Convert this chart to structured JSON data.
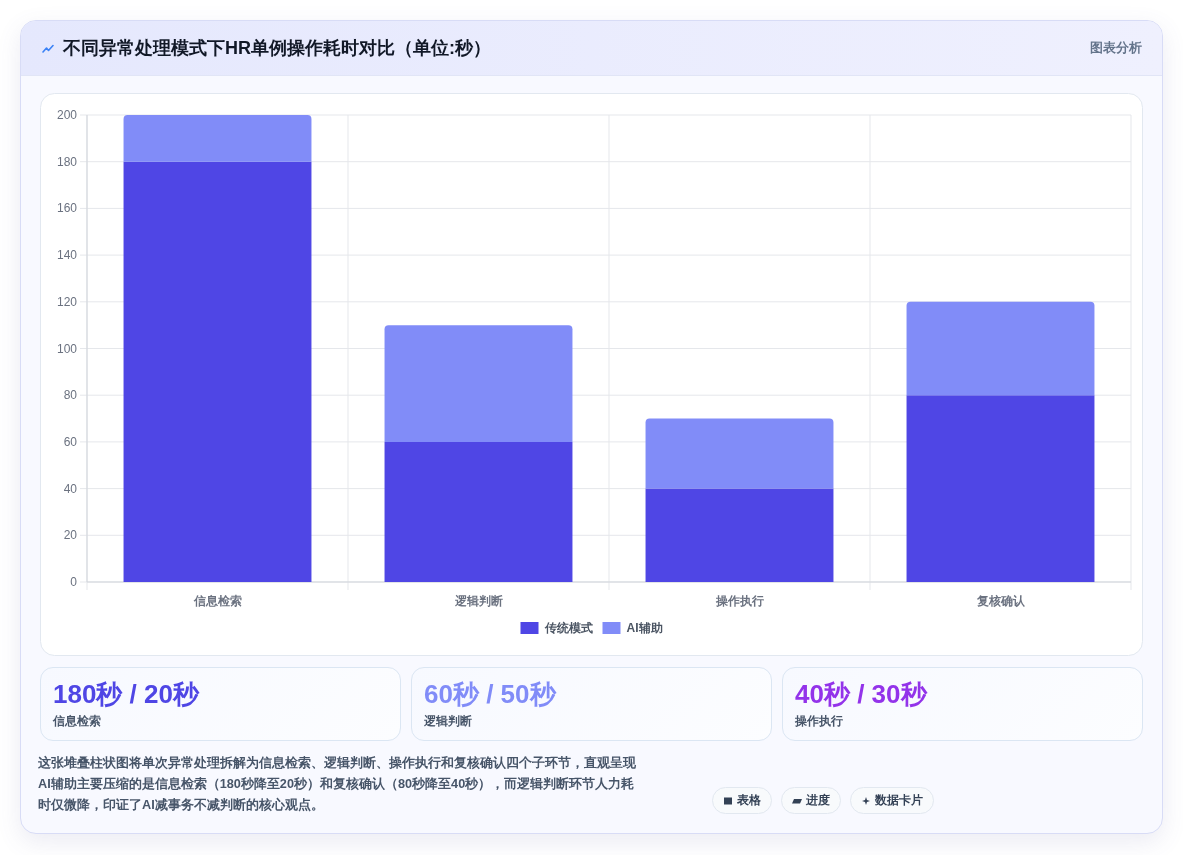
{
  "chart_data": [
    {
      "type": "bar",
      "title": "不同异常处理模式下HR单例操作耗时对比（单位:秒）",
      "categories": [
        "信息检索",
        "逻辑判断",
        "操作执行",
        "复核确认"
      ],
      "series": [
        {
          "name": "传统模式",
          "color": "#4f46e5",
          "values": [
            180,
            60,
            40,
            80
          ]
        },
        {
          "name": "AI辅助",
          "color": "#818cf8",
          "values": [
            20,
            50,
            30,
            40
          ]
        }
      ],
      "stacked": true,
      "ylim": [
        0,
        200
      ],
      "yticks": [
        0,
        20,
        40,
        60,
        80,
        100,
        120,
        140,
        160,
        180,
        200
      ],
      "grid": true,
      "legend": "bottom",
      "annotations": [
        "图表分析"
      ]
    },
    {
      "type": "other",
      "title": "180秒 / 20秒",
      "subtitle": "信息检索"
    },
    {
      "type": "other",
      "title": "60秒 / 50秒",
      "subtitle": "逻辑判断"
    },
    {
      "type": "other",
      "title": "40秒 / 30秒",
      "subtitle": "操作执行"
    },
    {
      "type": "other",
      "annotations": [
        "这张堆叠柱状图将单次异常处理拆解为信息检索、逻辑判断、操作执行和复核确认四个子环节，直观呈现AI辅助主要压缩的是信息检索（180秒降至20秒）和复核确认（80秒降至40秒），而逻辑判断环节人力耗时仅微降，印证了AI减事务不减判断的核心观点。",
        "表格",
        "进度",
        "数据卡片"
      ]
    }
  ]
}
